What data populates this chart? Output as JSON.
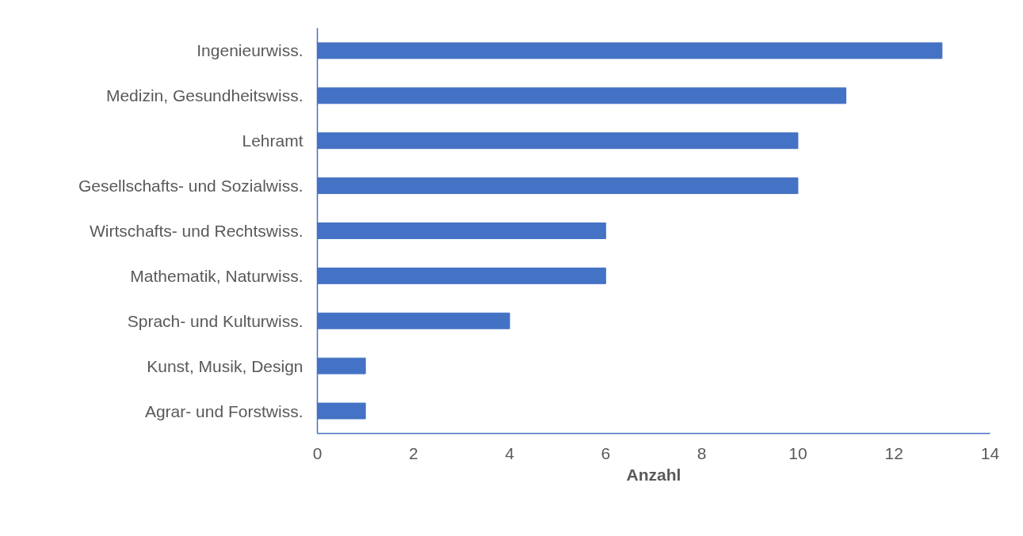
{
  "chart_data": {
    "type": "bar",
    "orientation": "horizontal",
    "categories": [
      "Ingenieurwiss.",
      "Medizin, Gesundheitswiss.",
      "Lehramt",
      "Gesellschafts- und Sozialwiss.",
      "Wirtschafts- und Rechtswiss.",
      "Mathematik, Naturwiss.",
      "Sprach- und Kulturwiss.",
      "Kunst, Musik, Design",
      "Agrar- und Forstwiss."
    ],
    "values": [
      13,
      11,
      10,
      10,
      6,
      6,
      4,
      1,
      1
    ],
    "color": "#4472c4",
    "xlabel": "Anzahl",
    "xlim": [
      0,
      14
    ],
    "xticks": [
      0,
      2,
      4,
      6,
      8,
      10,
      12,
      14
    ],
    "grid": false
  }
}
